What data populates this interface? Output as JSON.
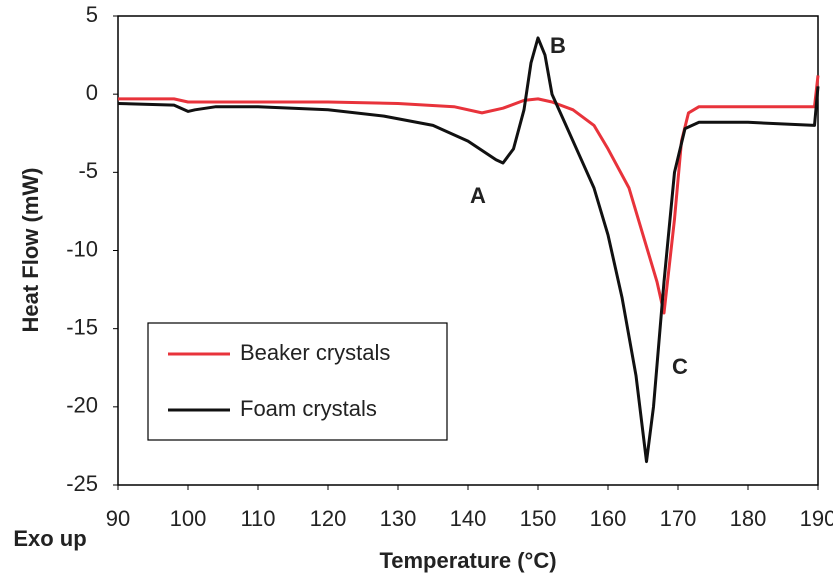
{
  "chart_data": {
    "type": "line",
    "xlabel": "Temperature (°C)",
    "ylabel": "Heat Flow (mW)",
    "xlim": [
      90,
      190
    ],
    "xticks": [
      90,
      100,
      110,
      120,
      130,
      140,
      150,
      160,
      170,
      180,
      190
    ],
    "ylim": [
      -25,
      5
    ],
    "yticks": [
      5,
      0,
      -5,
      -10,
      -15,
      -20,
      -25
    ],
    "legend": "lower left",
    "annotations": [
      "A",
      "B",
      "C",
      "Exo up"
    ],
    "series": [
      {
        "name": "Beaker crystals",
        "color": "#e8333b",
        "x": [
          90,
          98,
          100,
          110,
          120,
          130,
          138,
          142,
          145,
          148,
          150,
          152,
          155,
          158,
          160,
          163,
          165,
          167,
          168,
          169.5,
          170.5,
          171.5,
          173,
          180,
          189.5,
          190
        ],
        "values": [
          -0.3,
          -0.3,
          -0.5,
          -0.5,
          -0.5,
          -0.6,
          -0.8,
          -1.2,
          -0.9,
          -0.4,
          -0.3,
          -0.5,
          -1,
          -2,
          -3.5,
          -6,
          -9,
          -12,
          -14,
          -8,
          -3,
          -1.2,
          -0.8,
          -0.8,
          -0.8,
          1.2
        ]
      },
      {
        "name": "Foam crystals",
        "color": "#111111",
        "x": [
          90,
          98,
          100,
          101,
          104,
          110,
          120,
          128,
          135,
          140,
          144,
          145,
          146.5,
          148,
          149,
          150,
          151,
          152,
          154,
          156,
          158,
          160,
          162,
          164,
          165.5,
          166.5,
          168,
          169.5,
          171,
          173,
          180,
          189.5,
          190
        ],
        "values": [
          -0.6,
          -0.7,
          -1.1,
          -1.0,
          -0.8,
          -0.8,
          -1.0,
          -1.4,
          -2.0,
          -3,
          -4.2,
          -4.4,
          -3.5,
          -1,
          2,
          3.6,
          2.5,
          0,
          -2,
          -4,
          -6,
          -9,
          -13,
          -18,
          -23.5,
          -20,
          -12,
          -5,
          -2.2,
          -1.8,
          -1.8,
          -2,
          0.5
        ]
      }
    ]
  }
}
